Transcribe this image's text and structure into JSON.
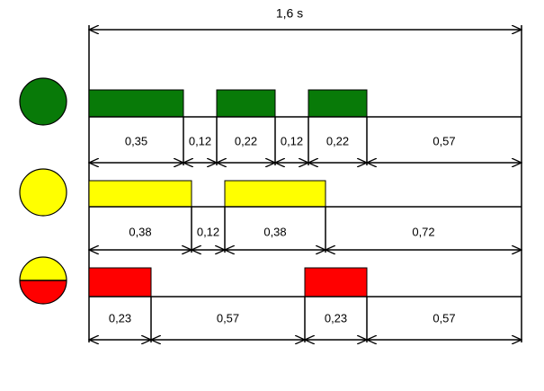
{
  "total_label": "1,6 s",
  "rows": [
    [
      "0,35",
      "0,12",
      "0,22",
      "0,12",
      "0,22",
      "0,57"
    ],
    [
      "0,38",
      "0,12",
      "0,38",
      "0,72"
    ],
    [
      "0,23",
      "0,57",
      "0,23",
      "0,57"
    ]
  ]
}
